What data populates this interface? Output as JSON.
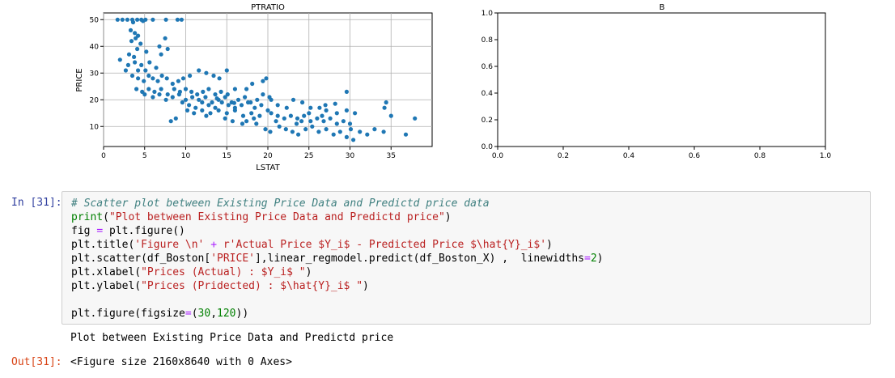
{
  "chart_data": [
    {
      "type": "scatter",
      "title": "PTRATIO",
      "xlabel": "LSTAT",
      "ylabel": "PRICE",
      "xlim": [
        0,
        40
      ],
      "ylim": [
        2.5,
        52.5
      ],
      "x_ticks": [
        0,
        5,
        10,
        15,
        20,
        25,
        30,
        35
      ],
      "y_ticks": [
        10,
        20,
        30,
        40,
        50
      ],
      "grid": true,
      "color": "#1f77b4",
      "points": [
        [
          1.7,
          50
        ],
        [
          2.3,
          50
        ],
        [
          2.9,
          50
        ],
        [
          3.5,
          50
        ],
        [
          4.1,
          50
        ],
        [
          4.6,
          50
        ],
        [
          5.1,
          50
        ],
        [
          6,
          50
        ],
        [
          7.6,
          50
        ],
        [
          9,
          50
        ],
        [
          9.5,
          50
        ],
        [
          4.8,
          49.5
        ],
        [
          3.6,
          49
        ],
        [
          3.3,
          46
        ],
        [
          3.8,
          45
        ],
        [
          4.2,
          44
        ],
        [
          3.4,
          42
        ],
        [
          3.9,
          43
        ],
        [
          4.5,
          41
        ],
        [
          4.1,
          39
        ],
        [
          3.1,
          37
        ],
        [
          3.7,
          36
        ],
        [
          5.2,
          38
        ],
        [
          3,
          33
        ],
        [
          3.8,
          34
        ],
        [
          4.6,
          33
        ],
        [
          5.1,
          31
        ],
        [
          4.2,
          31
        ],
        [
          5.6,
          34
        ],
        [
          6.4,
          32
        ],
        [
          7,
          37
        ],
        [
          7.5,
          43
        ],
        [
          7.8,
          39
        ],
        [
          6.8,
          40
        ],
        [
          2,
          35
        ],
        [
          2.7,
          31
        ],
        [
          3.5,
          29
        ],
        [
          4.2,
          28
        ],
        [
          4.9,
          27
        ],
        [
          5.5,
          29
        ],
        [
          6,
          28
        ],
        [
          6.6,
          27
        ],
        [
          7.1,
          29
        ],
        [
          7.7,
          28
        ],
        [
          8.4,
          26
        ],
        [
          9.1,
          27
        ],
        [
          9.7,
          28
        ],
        [
          10.5,
          29
        ],
        [
          11.6,
          31
        ],
        [
          12.5,
          30
        ],
        [
          13.4,
          29
        ],
        [
          14.1,
          28
        ],
        [
          15,
          31
        ],
        [
          4,
          24
        ],
        [
          4.7,
          23
        ],
        [
          5.5,
          24
        ],
        [
          6.2,
          23
        ],
        [
          7,
          24
        ],
        [
          7.8,
          22
        ],
        [
          8.6,
          24
        ],
        [
          9.3,
          23
        ],
        [
          10,
          24
        ],
        [
          10.7,
          23
        ],
        [
          11.4,
          22
        ],
        [
          12.1,
          23
        ],
        [
          12.8,
          24
        ],
        [
          13.6,
          22
        ],
        [
          14.3,
          23
        ],
        [
          15.1,
          22
        ],
        [
          16,
          24
        ],
        [
          5,
          22
        ],
        [
          6,
          21
        ],
        [
          6.8,
          22
        ],
        [
          7.6,
          20
        ],
        [
          8.4,
          21
        ],
        [
          9.2,
          22
        ],
        [
          10,
          20
        ],
        [
          10.8,
          21
        ],
        [
          11.6,
          20
        ],
        [
          12.4,
          21
        ],
        [
          13.2,
          19
        ],
        [
          14,
          20
        ],
        [
          14.8,
          21
        ],
        [
          15.6,
          19
        ],
        [
          16.4,
          20
        ],
        [
          17.2,
          21
        ],
        [
          17.9,
          19
        ],
        [
          18.7,
          20
        ],
        [
          19.4,
          22
        ],
        [
          20.2,
          21
        ],
        [
          9.6,
          19
        ],
        [
          10.4,
          18
        ],
        [
          11.2,
          17
        ],
        [
          12,
          19
        ],
        [
          12.8,
          18
        ],
        [
          13.6,
          17
        ],
        [
          14.4,
          19
        ],
        [
          15.2,
          18
        ],
        [
          16,
          17
        ],
        [
          16.8,
          18
        ],
        [
          17.6,
          19
        ],
        [
          18.4,
          17
        ],
        [
          19.2,
          18
        ],
        [
          20,
          16
        ],
        [
          10.2,
          16
        ],
        [
          11,
          15
        ],
        [
          12,
          16
        ],
        [
          13,
          15
        ],
        [
          14,
          16
        ],
        [
          15,
          15
        ],
        [
          16,
          16
        ],
        [
          17,
          14
        ],
        [
          18,
          15
        ],
        [
          19,
          14
        ],
        [
          20.4,
          15
        ],
        [
          21.2,
          14
        ],
        [
          22,
          13
        ],
        [
          22.8,
          14
        ],
        [
          23.6,
          13
        ],
        [
          24.4,
          14
        ],
        [
          25.2,
          12
        ],
        [
          26,
          13
        ],
        [
          26.8,
          12
        ],
        [
          27.6,
          13
        ],
        [
          28.4,
          11
        ],
        [
          29.2,
          12
        ],
        [
          30,
          11
        ],
        [
          19.4,
          27
        ],
        [
          19.8,
          28
        ],
        [
          18.1,
          26
        ],
        [
          17.4,
          24
        ],
        [
          20.4,
          20
        ],
        [
          21.2,
          18
        ],
        [
          22.3,
          17
        ],
        [
          23.1,
          20
        ],
        [
          24.2,
          19
        ],
        [
          25,
          15
        ],
        [
          26.3,
          17
        ],
        [
          27.1,
          16
        ],
        [
          28.4,
          15
        ],
        [
          29.6,
          16
        ],
        [
          30.6,
          15
        ],
        [
          29.6,
          23
        ],
        [
          17.4,
          12
        ],
        [
          18.6,
          11
        ],
        [
          19.7,
          9
        ],
        [
          20.3,
          8
        ],
        [
          21.4,
          10
        ],
        [
          22.2,
          9
        ],
        [
          23,
          8
        ],
        [
          23.7,
          7
        ],
        [
          24.6,
          9
        ],
        [
          25.4,
          10
        ],
        [
          26.2,
          8
        ],
        [
          27.1,
          9
        ],
        [
          28,
          7
        ],
        [
          28.8,
          8
        ],
        [
          29.6,
          6
        ],
        [
          30.4,
          5
        ],
        [
          30.1,
          9
        ],
        [
          31.2,
          8
        ],
        [
          32.1,
          7
        ],
        [
          33,
          9
        ],
        [
          34.1,
          8
        ],
        [
          35,
          14
        ],
        [
          34.2,
          17
        ],
        [
          34.4,
          19
        ],
        [
          36.8,
          7
        ],
        [
          37.9,
          13
        ],
        [
          25.2,
          17
        ],
        [
          27,
          18
        ],
        [
          28.2,
          18.5
        ],
        [
          8.2,
          12
        ],
        [
          12.5,
          14
        ],
        [
          15.7,
          12
        ],
        [
          16.9,
          11
        ],
        [
          14.8,
          13
        ],
        [
          13.8,
          20.5
        ],
        [
          15.9,
          18.8
        ],
        [
          18.3,
          13
        ],
        [
          21,
          12
        ],
        [
          23.5,
          11
        ],
        [
          24.1,
          12
        ],
        [
          26.6,
          14
        ],
        [
          8.8,
          13
        ]
      ]
    },
    {
      "type": "scatter",
      "title": "B",
      "xlim": [
        0,
        1
      ],
      "ylim": [
        0,
        1
      ],
      "x_ticks": [
        0,
        0.2,
        0.4,
        0.6,
        0.8,
        1
      ],
      "y_ticks": [
        0,
        0.2,
        0.4,
        0.6,
        0.8,
        1
      ],
      "x_tick_labels": [
        "0.0",
        "0.2",
        "0.4",
        "0.6",
        "0.8",
        "1.0"
      ],
      "y_tick_labels": [
        "0.0",
        "0.2",
        "0.4",
        "0.6",
        "0.8",
        "1.0"
      ],
      "grid": false,
      "points": []
    }
  ],
  "cell": {
    "in_prompt": "In [31]:",
    "out_prompt": "Out[31]:",
    "stdout": "Plot between Existing Price Data and Predictd price",
    "result": "<Figure size 2160x8640 with 0 Axes>",
    "code": {
      "comment": "# Scatter plot between Existing Price Data and Predictd price data",
      "line2_fn": "print",
      "line2_str": "\"Plot between Existing Price Data and Predictd price\"",
      "line3_a": "fig ",
      "line3_op": "=",
      "line3_b": " plt.figure()",
      "line4_a": "plt.title(",
      "line4_s1": "'Figure \\n'",
      "line4_op": " + ",
      "line4_s2": "r'Actual Price $Y_i$ - Predicted Price $\\hat{Y}_i$'",
      "line4_b": ")",
      "line5_a": "plt.scatter(df_Boston[",
      "line5_s": "'PRICE'",
      "line5_b": "],linear_regmodel.predict(df_Boston_X) ,  linewidths",
      "line5_op": "=",
      "line5_n": "2",
      "line5_c": ")",
      "line6_a": "plt.xlabel(",
      "line6_s": "\"Prices (Actual) : $Y_i$ \"",
      "line6_b": ")",
      "line7_a": "plt.ylabel(",
      "line7_s": "\"Prices (Pridected) : $\\hat{Y}_i$ \"",
      "line7_b": ")",
      "line9_a": "plt.figure(figsize",
      "line9_op": "=",
      "line9_b": "(",
      "line9_n1": "30",
      "line9_c": ",",
      "line9_n2": "120",
      "line9_d": "))"
    }
  }
}
